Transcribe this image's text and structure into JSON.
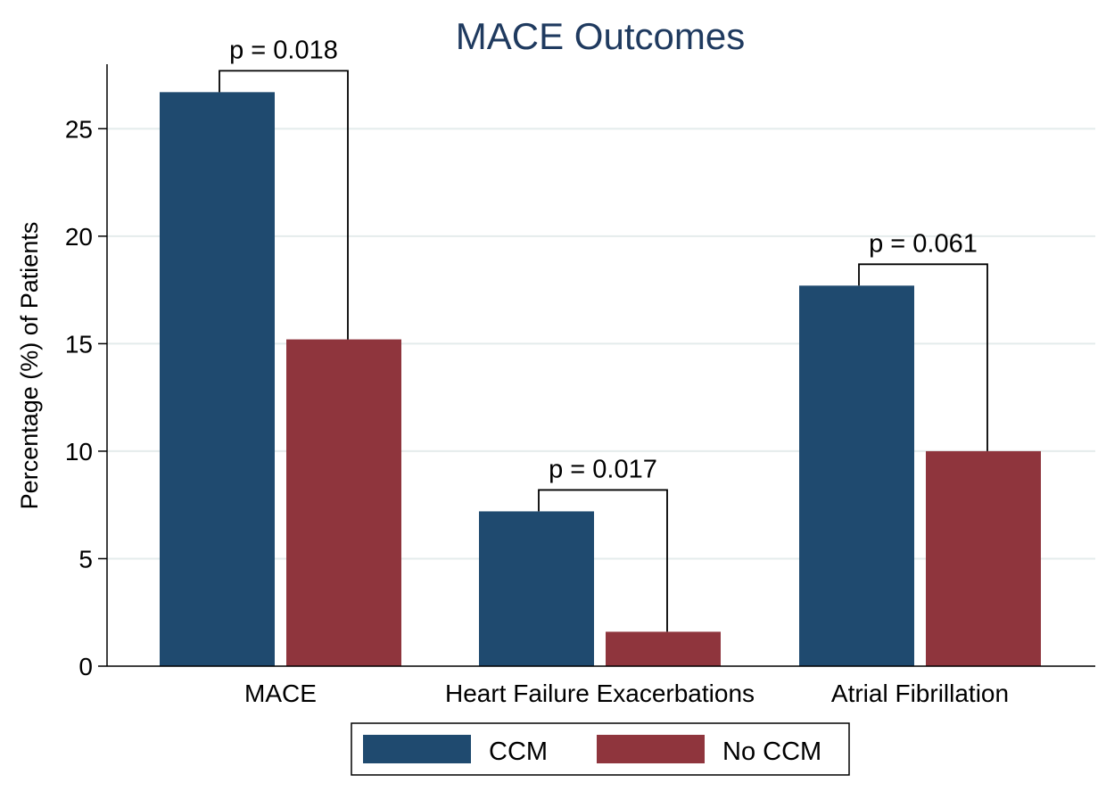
{
  "chart_data": {
    "type": "bar",
    "title": "MACE Outcomes",
    "xlabel": "",
    "ylabel": "Percentage (%) of Patients",
    "ylim": [
      0,
      28
    ],
    "yticks": [
      0,
      5,
      10,
      15,
      20,
      25
    ],
    "ytick_labels": [
      "0",
      "5",
      "10",
      "15",
      "20",
      "25"
    ],
    "grid": true,
    "categories": [
      "MACE",
      "Heart Failure Exacerbations",
      "Atrial Fibrillation"
    ],
    "series": [
      {
        "name": "CCM",
        "color": "#1f4a6f",
        "values": [
          26.7,
          7.2,
          17.7
        ]
      },
      {
        "name": "No CCM",
        "color": "#8f353d",
        "values": [
          15.2,
          1.6,
          10.0
        ]
      }
    ],
    "annotations": [
      {
        "category": "MACE",
        "text": "p = 0.018"
      },
      {
        "category": "Heart Failure Exacerbations",
        "text": "p = 0.017"
      },
      {
        "category": "Atrial Fibrillation",
        "text": "p = 0.061"
      }
    ],
    "legend": {
      "placement": "bottom",
      "entries": [
        "CCM",
        "No CCM"
      ]
    }
  },
  "colors": {
    "title": "#1f3a5f",
    "grid": "#e4ecec",
    "axis": "#000000"
  }
}
